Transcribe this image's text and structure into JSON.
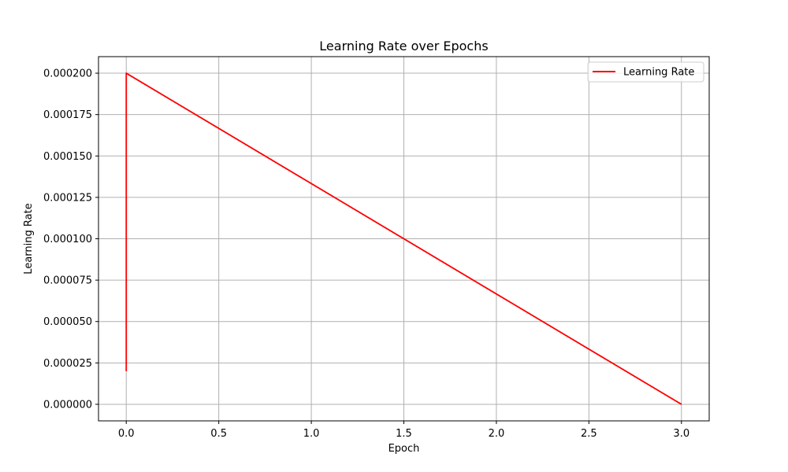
{
  "chart_data": {
    "type": "line",
    "title": "Learning Rate over Epochs",
    "xlabel": "Epoch",
    "ylabel": "Learning Rate",
    "xlim": [
      -0.15,
      3.15
    ],
    "ylim": [
      -1e-05,
      0.00021
    ],
    "x_ticks": [
      0.0,
      0.5,
      1.0,
      1.5,
      2.0,
      2.5,
      3.0
    ],
    "x_tick_labels": [
      "0.0",
      "0.5",
      "1.0",
      "1.5",
      "2.0",
      "2.5",
      "3.0"
    ],
    "y_ticks": [
      0.0,
      2.5e-05,
      5e-05,
      7.5e-05,
      0.0001,
      0.000125,
      0.00015,
      0.000175,
      0.0002
    ],
    "y_tick_labels": [
      "0.000000",
      "0.000025",
      "0.000050",
      "0.000075",
      "0.000100",
      "0.000125",
      "0.000150",
      "0.000175",
      "0.000200"
    ],
    "grid": true,
    "legend_position": "top-right",
    "series": [
      {
        "name": "Learning Rate",
        "color": "#ff0000",
        "x": [
          0.0,
          0.0,
          3.0
        ],
        "y": [
          2e-05,
          0.0002,
          0.0
        ]
      }
    ]
  }
}
